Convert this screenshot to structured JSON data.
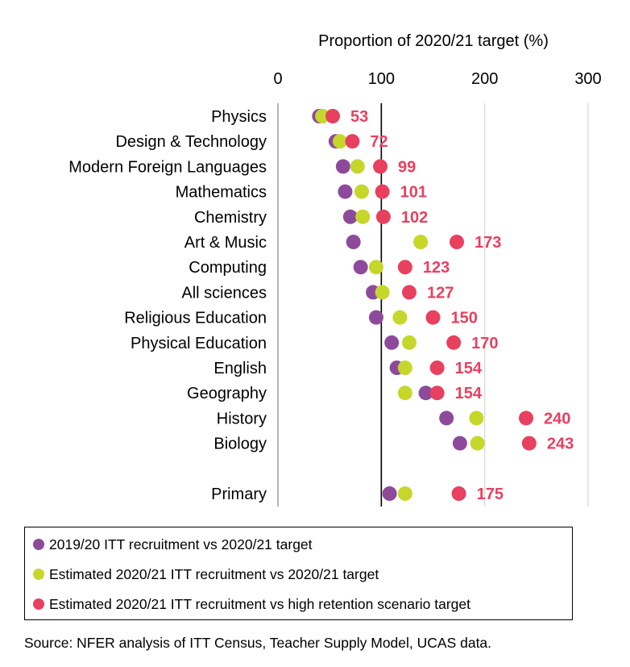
{
  "chart_data": {
    "type": "scatter",
    "xlabel": "Proportion of 2020/21 target (%)",
    "xlim": [
      0,
      300
    ],
    "xticks": [
      0,
      100,
      200,
      300
    ],
    "grid": true,
    "legend_position": "bottom",
    "categories": [
      "Physics",
      "Design & Technology",
      "Modern Foreign Languages",
      "Mathematics",
      "Chemistry",
      "Art & Music",
      "Computing",
      "All sciences",
      "Religious Education",
      "Physical Education",
      "English",
      "Geography",
      "History",
      "Biology",
      "Primary"
    ],
    "series": [
      {
        "name": "2019/20 ITT recruitment vs 2020/21 target",
        "color": "#8e4a9a",
        "values": [
          40,
          56,
          63,
          65,
          70,
          73,
          80,
          92,
          95,
          110,
          115,
          143,
          163,
          176,
          108
        ]
      },
      {
        "name": "Estimated 2020/21 ITT recruitment vs 2020/21 target",
        "color": "#c6d72b",
        "values": [
          43,
          60,
          77,
          81,
          82,
          138,
          95,
          101,
          118,
          127,
          123,
          123,
          192,
          193,
          123
        ]
      },
      {
        "name": "Estimated 2020/21 ITT recruitment vs high retention scenario target",
        "color": "#e8405f",
        "values": [
          53,
          72,
          99,
          101,
          102,
          173,
          123,
          127,
          150,
          170,
          154,
          154,
          240,
          243,
          175
        ]
      }
    ],
    "data_labels": [
      "53",
      "72",
      "99",
      "101",
      "102",
      "173",
      "123",
      "127",
      "150",
      "170",
      "154",
      "154",
      "240",
      "243",
      "175"
    ],
    "label_color": "#e8405f"
  },
  "source": "Source: NFER analysis of ITT Census, Teacher Supply Model, UCAS data."
}
